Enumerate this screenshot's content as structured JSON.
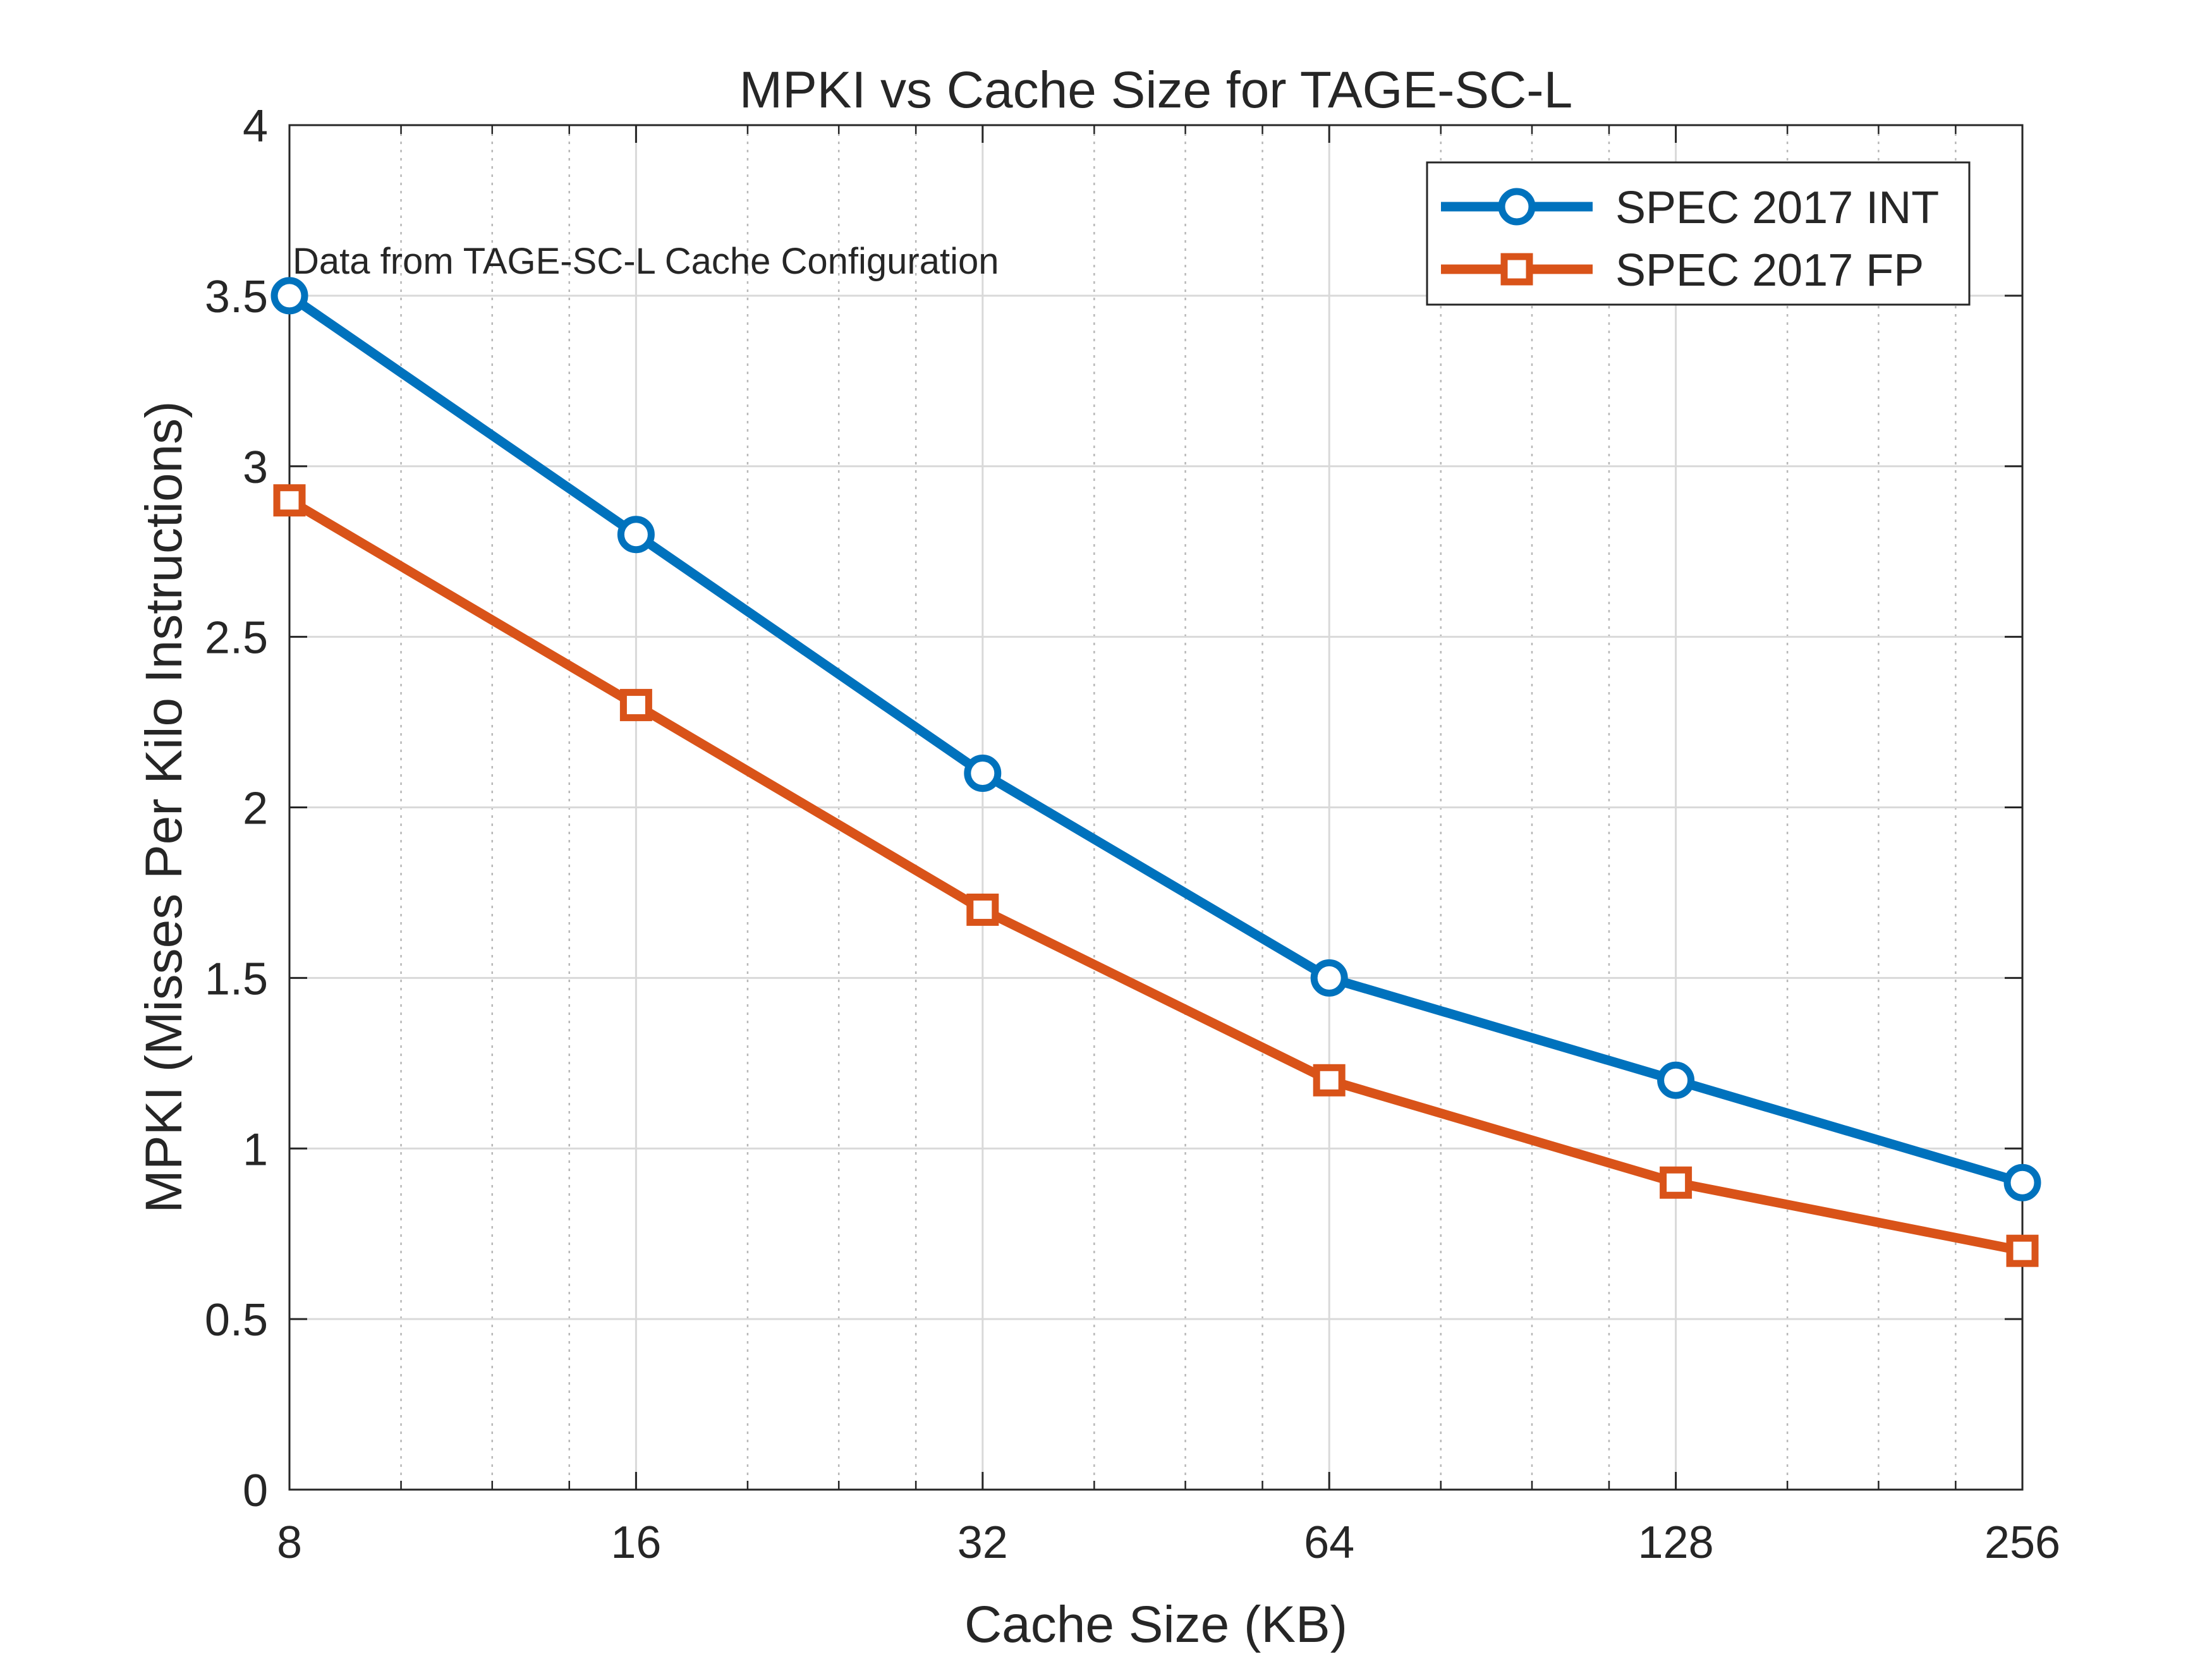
{
  "chart_data": {
    "type": "line",
    "title": "MPKI vs Cache Size for TAGE-SC-L",
    "xlabel": "Cache Size (KB)",
    "ylabel": "MPKI (Misses Per Kilo Instructions)",
    "annotation": "Data from TAGE-SC-L Cache Configuration",
    "x": [
      8,
      16,
      32,
      64,
      128,
      256
    ],
    "xscale": "log2",
    "xlim": [
      8,
      256
    ],
    "xticks": [
      8,
      16,
      32,
      64,
      128,
      256
    ],
    "xtick_labels": [
      "8",
      "16",
      "32",
      "64",
      "128",
      "256"
    ],
    "ylim": [
      0,
      4
    ],
    "yticks": [
      0,
      0.5,
      1,
      1.5,
      2,
      2.5,
      3,
      3.5,
      4
    ],
    "ytick_labels": [
      "0",
      "0.5",
      "1",
      "1.5",
      "2",
      "2.5",
      "3",
      "3.5",
      "4"
    ],
    "grid": true,
    "minor_grid_x": true,
    "legend_position": "top-right",
    "series": [
      {
        "name": "SPEC 2017 INT",
        "values": [
          3.5,
          2.8,
          2.1,
          1.5,
          1.2,
          0.9
        ],
        "color": "#0072BD",
        "marker": "circle"
      },
      {
        "name": "SPEC 2017 FP",
        "values": [
          2.9,
          2.3,
          1.7,
          1.2,
          0.9,
          0.7
        ],
        "color": "#D95319",
        "marker": "square"
      }
    ]
  }
}
